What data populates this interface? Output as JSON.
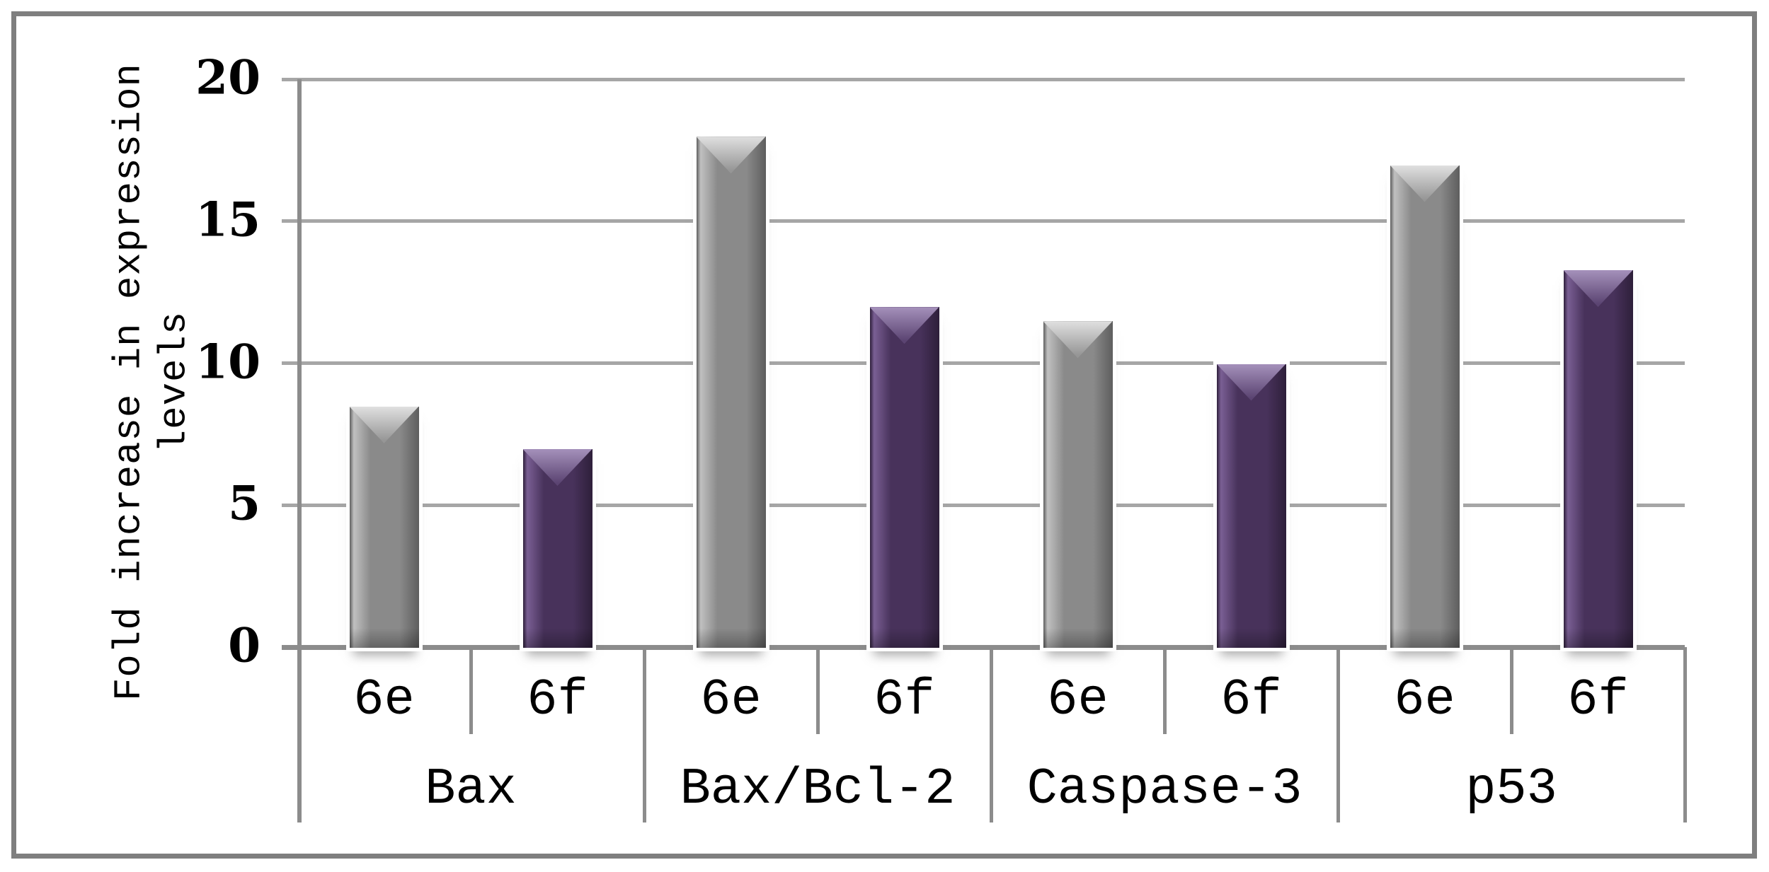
{
  "figure": {
    "background": "#ffffff",
    "border_color": "#7f7f7f"
  },
  "chart_data": {
    "type": "bar",
    "title": "",
    "xlabel": "",
    "ylabel": "Fold increase in expression levels",
    "ylabel_lines": [
      "Fold increase in expression",
      "levels"
    ],
    "categories": [
      "Bax",
      "Bax/Bcl-2",
      "Caspase-3",
      "p53"
    ],
    "subcategories": [
      "6e",
      "6f"
    ],
    "series": [
      {
        "name": "6e",
        "values": [
          8.5,
          18,
          11.5,
          17
        ]
      },
      {
        "name": "6f",
        "values": [
          7,
          12,
          10,
          13.3
        ]
      }
    ],
    "ylim": [
      0,
      20
    ],
    "y_ticks": [
      0,
      5,
      10,
      15,
      20
    ],
    "grid": "horizontal",
    "legend": "none",
    "bar_style": "3d-bevel"
  },
  "colors": {
    "gridline": "#a6a6a6",
    "axis": "#8c8c8c",
    "tick_text": "#000000",
    "series_6e": {
      "body": "#8a8a8a",
      "edge_dark": "#5e5e5e",
      "edge_light": "#c0c0c0",
      "cap_top": "#e0e0e0",
      "cap_bottom": "#969696"
    },
    "series_6f": {
      "body": "#48325b",
      "edge_dark": "#2e1f3a",
      "edge_light": "#7a5f94",
      "cap_top": "#a591bb",
      "cap_bottom": "#5b4472"
    }
  }
}
